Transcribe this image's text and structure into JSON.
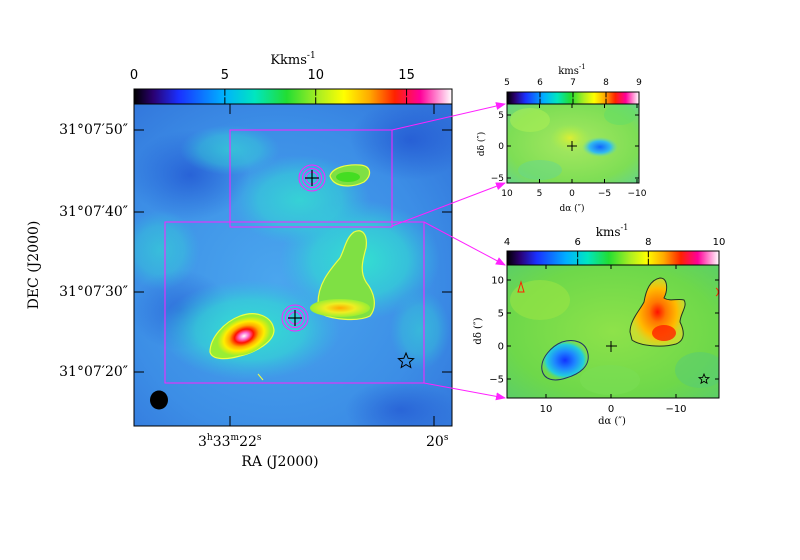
{
  "chart_data": [
    {
      "type": "heatmap",
      "panel": "main",
      "colorbar": {
        "unit": "Kkms",
        "unit_exp": "-1",
        "ticks": [
          0,
          5,
          10,
          15
        ],
        "range": [
          0,
          17.5
        ]
      },
      "xlabel": "RA   (J2000)",
      "ylabel": "DEC   (J2000)",
      "x_ticks": [
        {
          "label": "3",
          "sup1": "h",
          "mid": "33",
          "sup2": "m",
          "tail": "22",
          "sup3": "s"
        },
        {
          "label": "20",
          "sup3": "s"
        }
      ],
      "y_ticks": [
        "31°07′50″",
        "31°07′40″",
        "31°07′30″",
        "31°07′20″"
      ],
      "colors": {
        "contour": "#eeff44",
        "beam": "#000000",
        "box": "#ff22ff",
        "outline": "#000000"
      }
    },
    {
      "type": "heatmap",
      "panel": "inset-top",
      "colorbar": {
        "unit": "kms",
        "unit_exp": "-1",
        "ticks": [
          5,
          6,
          7,
          8,
          9
        ],
        "range": [
          5,
          9
        ]
      },
      "xlabel": "dα (″)",
      "ylabel": "dδ (″)",
      "x_ticks": [
        "10",
        "5",
        "0",
        "−5",
        "−10"
      ],
      "y_ticks": [
        "5",
        "0",
        "−5"
      ]
    },
    {
      "type": "heatmap",
      "panel": "inset-bottom",
      "colorbar": {
        "unit": "kms",
        "unit_exp": "-1",
        "ticks": [
          4,
          6,
          8,
          10
        ],
        "range": [
          4,
          10
        ]
      },
      "xlabel": "dα (″)",
      "ylabel": "dδ (″)",
      "x_ticks": [
        "10",
        "0",
        "−10"
      ],
      "y_ticks": [
        "10",
        "5",
        "0",
        "−5"
      ]
    }
  ]
}
